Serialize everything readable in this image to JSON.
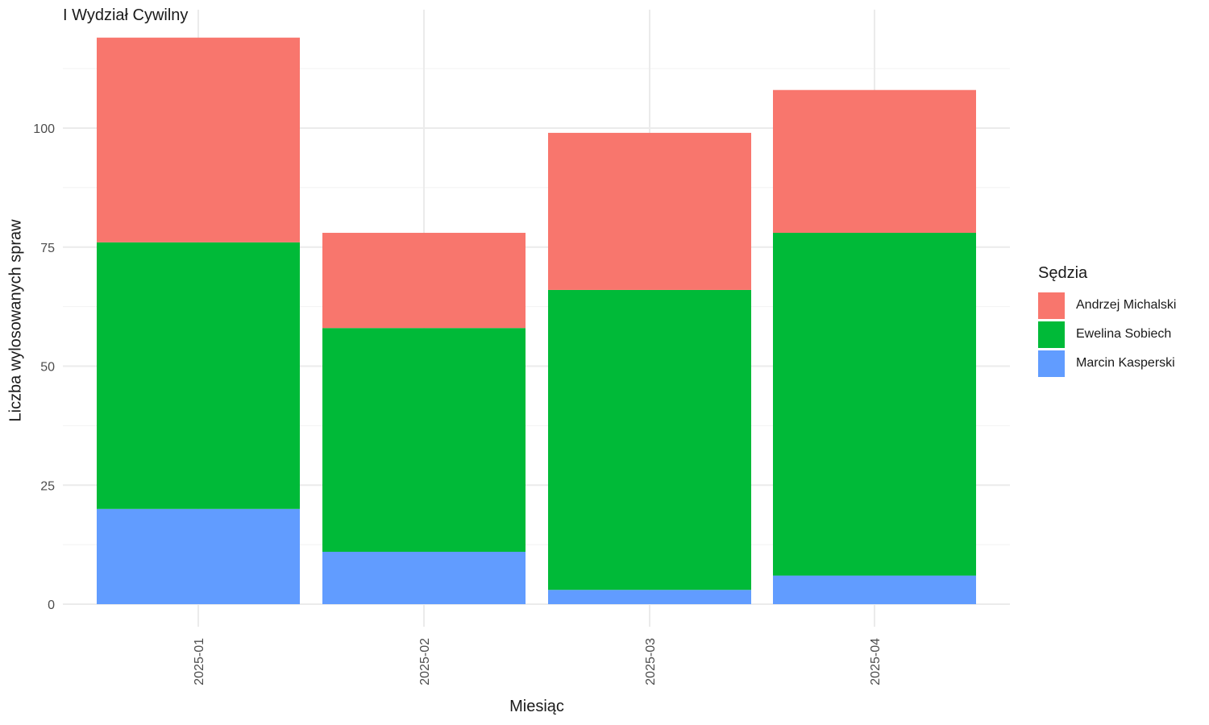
{
  "chart_data": {
    "type": "bar",
    "stacked": true,
    "title": "I Wydział Cywilny",
    "xlabel": "Miesiąc",
    "ylabel": "Liczba wylosowanych spraw",
    "categories": [
      "2025-01",
      "2025-02",
      "2025-03",
      "2025-04"
    ],
    "series": [
      {
        "name": "Marcin Kasperski",
        "color": "#619cff",
        "values": [
          20,
          11,
          3,
          6
        ]
      },
      {
        "name": "Ewelina Sobiech",
        "color": "#00ba38",
        "values": [
          56,
          47,
          63,
          72
        ]
      },
      {
        "name": "Andrzej Michalski",
        "color": "#f8766d",
        "values": [
          43,
          20,
          33,
          30
        ]
      }
    ],
    "ylim": [
      0,
      125
    ],
    "yticks": [
      0,
      25,
      50,
      75,
      100
    ],
    "grid": true,
    "legend": {
      "title": "Sędzia",
      "position": "right",
      "items": [
        {
          "label": "Andrzej Michalski",
          "color": "#f8766d"
        },
        {
          "label": "Ewelina Sobiech",
          "color": "#00ba38"
        },
        {
          "label": "Marcin Kasperski",
          "color": "#619cff"
        }
      ]
    }
  }
}
